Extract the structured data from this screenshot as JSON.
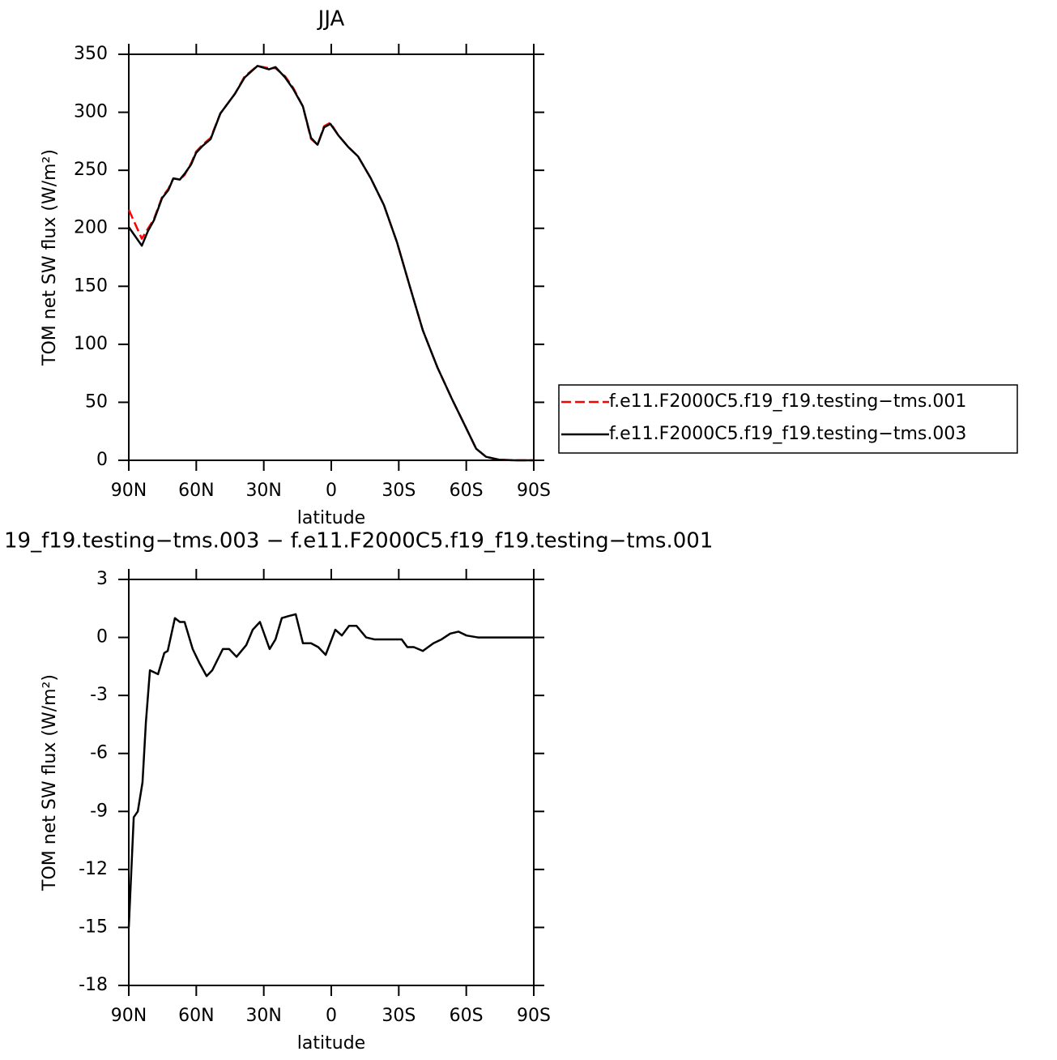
{
  "chart_data": [
    {
      "type": "line",
      "title": "JJA",
      "xlabel": "latitude",
      "ylabel": "TOM net SW flux (W/m²)",
      "x": [
        90,
        84.2,
        81.4,
        78.8,
        75.2,
        72.4,
        70.2,
        67.3,
        65.2,
        62.3,
        60.1,
        57.2,
        53.6,
        49.3,
        42.8,
        38.5,
        32.8,
        27.7,
        24.8,
        20.5,
        16.9,
        12.6,
        9,
        6.1,
        3.2,
        0.4,
        -3.2,
        -7.6,
        -11.9,
        -17.6,
        -23.4,
        -29.2,
        -34.9,
        -40.7,
        -47.2,
        -53.6,
        -59.4,
        -64.4,
        -68.8,
        -74.5,
        -81.4,
        -90
      ],
      "series": [
        {
          "name": "f.e11.F2000C5.f19_f19.testing−tms.001",
          "color": "#ff0000",
          "dash": true,
          "values": [
            216,
            191,
            200,
            208,
            227,
            234,
            243,
            242,
            246,
            256,
            266,
            272,
            278,
            299,
            316,
            331,
            340,
            338,
            338,
            331,
            321,
            305,
            277,
            272,
            288,
            291,
            280,
            270,
            262,
            243,
            220,
            188,
            150,
            112,
            80,
            53,
            30,
            10,
            3,
            0.5,
            0,
            0
          ]
        },
        {
          "name": "f.e11.F2000C5.f19_f19.testing−tms.003",
          "color": "#000000",
          "dash": false,
          "values": [
            201,
            185,
            198,
            207,
            226,
            233,
            243,
            242,
            247,
            255,
            265,
            271,
            277,
            299,
            316,
            330,
            340,
            337,
            339,
            330,
            320,
            305,
            278,
            272,
            287,
            290,
            280,
            270,
            262,
            243,
            220,
            188,
            150,
            112,
            80,
            53,
            30,
            10,
            3,
            0.5,
            0,
            0
          ]
        }
      ],
      "xlim": [
        90,
        -90
      ],
      "xticks": [
        {
          "value": 90,
          "label": "90N"
        },
        {
          "value": 60,
          "label": "60N"
        },
        {
          "value": 30,
          "label": "30N"
        },
        0,
        {
          "value": -30,
          "label": "30S"
        },
        {
          "value": -60,
          "label": "60S"
        },
        {
          "value": -90,
          "label": "90S"
        }
      ],
      "ylim": [
        0,
        350
      ],
      "yticks": [
        0,
        50,
        100,
        150,
        200,
        250,
        300,
        350
      ],
      "legend": "right"
    },
    {
      "type": "line",
      "title": "19_f19.testing−tms.003 − f.e11.F2000C5.f19_f19.testing−tms.001",
      "xlabel": "latitude",
      "ylabel": "TOM net SW flux (W/m²)",
      "x": [
        90,
        87.8,
        86,
        83.9,
        82.4,
        80.6,
        77,
        74.2,
        72.7,
        69.5,
        67.3,
        65.2,
        61.6,
        58.7,
        55.4,
        52.9,
        48.2,
        45.4,
        42.1,
        37.8,
        34.9,
        31.7,
        27.4,
        24.8,
        22,
        19.1,
        15.8,
        12.6,
        9,
        5.8,
        2.5,
        -1.8,
        -4.7,
        -7.9,
        -11.2,
        -15.5,
        -19.1,
        -24.1,
        -27.7,
        -31.3,
        -33.8,
        -36.7,
        -40.7,
        -45.4,
        -49,
        -52.9,
        -56.5,
        -60.1,
        -65.2,
        -90
      ],
      "series": [
        {
          "color": "#000000",
          "dash": false,
          "values": [
            -15,
            -9.3,
            -9,
            -7.5,
            -4.4,
            -1.7,
            -1.9,
            -0.8,
            -0.7,
            1,
            0.8,
            0.8,
            -0.6,
            -1.3,
            -2,
            -1.7,
            -0.6,
            -0.6,
            -1,
            -0.4,
            0.4,
            0.8,
            -0.6,
            -0.1,
            1,
            1.1,
            1.2,
            -0.3,
            -0.3,
            -0.5,
            -0.9,
            0.4,
            0.1,
            0.6,
            0.6,
            0,
            -0.1,
            -0.1,
            -0.1,
            -0.1,
            -0.5,
            -0.5,
            -0.7,
            -0.3,
            -0.1,
            0.2,
            0.3,
            0.1,
            0,
            0
          ]
        }
      ],
      "xlim": [
        90,
        -90
      ],
      "xticks": [
        {
          "value": 90,
          "label": "90N"
        },
        {
          "value": 60,
          "label": "60N"
        },
        {
          "value": 30,
          "label": "30N"
        },
        0,
        {
          "value": -30,
          "label": "30S"
        },
        {
          "value": -60,
          "label": "60S"
        },
        {
          "value": -90,
          "label": "90S"
        }
      ],
      "ylim": [
        -18,
        3
      ],
      "yticks": [
        -18,
        -15,
        -12,
        -9,
        -6,
        -3,
        0,
        3
      ]
    }
  ]
}
